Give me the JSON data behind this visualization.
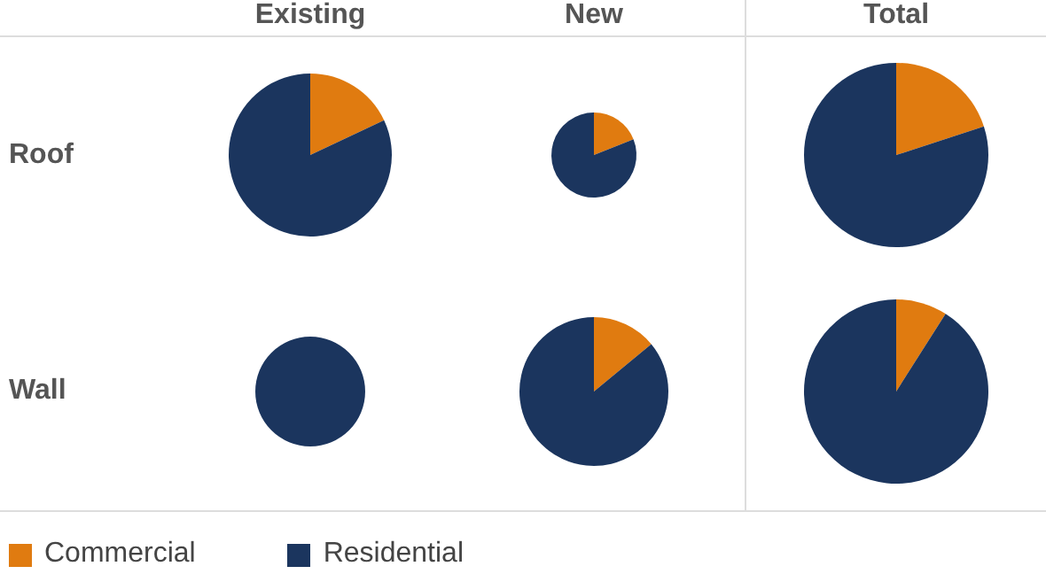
{
  "chart_data": [
    {
      "type": "pie",
      "title": "Existing",
      "ylabel": "Roof",
      "categories": [
        "Commercial",
        "Residential"
      ],
      "values": [
        18,
        82
      ],
      "colors": [
        "#e07b10",
        "#1b355e"
      ],
      "legend": "bottom left"
    },
    {
      "type": "pie",
      "title": "New",
      "categories": [
        null,
        null
      ],
      "values": [
        19,
        81
      ],
      "colors": [
        "#e07b10",
        "#1b355e"
      ]
    },
    {
      "type": "pie",
      "title": "Total",
      "categories": [
        null,
        null
      ],
      "values": [
        20,
        80
      ],
      "colors": [
        "#e07b10",
        "#1b355e"
      ]
    },
    {
      "type": "pie",
      "ylabel": "Wall",
      "categories": [
        null,
        null
      ],
      "values": [
        0,
        100
      ],
      "colors": [
        "#e07b10",
        "#1b355e"
      ]
    },
    {
      "type": "pie",
      "categories": [
        null,
        null
      ],
      "values": [
        14,
        86
      ],
      "colors": [
        "#e07b10",
        "#1b355e"
      ]
    },
    {
      "type": "pie",
      "categories": [
        null,
        null
      ],
      "values": [
        9,
        91
      ],
      "colors": [
        "#e07b10",
        "#1b355e"
      ]
    }
  ]
}
